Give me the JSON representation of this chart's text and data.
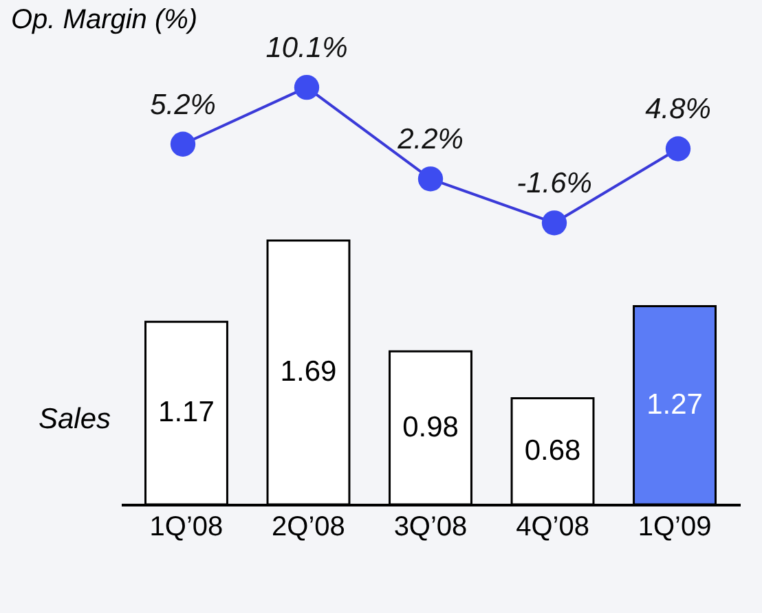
{
  "chart_data": [
    {
      "type": "line",
      "title": "Op. Margin (%)",
      "categories": [
        null,
        null,
        null,
        null,
        null
      ],
      "marker": "circle",
      "tick_labels": false,
      "series": [
        {
          "color": "#3a3ad8",
          "values": [
            5.2,
            10.1,
            2.2,
            -1.6,
            4.8
          ],
          "value_labels": [
            "5.2%",
            "10.1%",
            "2.2%",
            "-1.6%",
            "4.8%"
          ]
        }
      ]
    },
    {
      "type": "bar",
      "ylabel": "Sales",
      "categories": [
        "1Q’08",
        "2Q’08",
        "3Q’08",
        "4Q’08",
        "1Q’09"
      ],
      "values": [
        1.17,
        1.69,
        0.98,
        0.68,
        1.27
      ],
      "colors": [
        "#ffffff",
        "#ffffff",
        "#ffffff",
        "#ffffff",
        "#5b7cf6"
      ],
      "data_labels": true,
      "tick_labels": "x"
    }
  ]
}
